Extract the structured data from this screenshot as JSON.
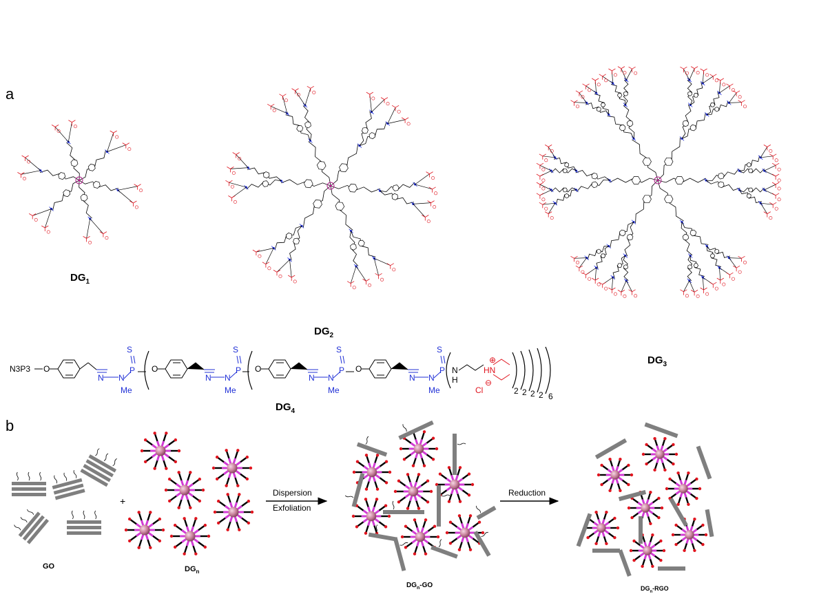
{
  "panels": {
    "a": "a",
    "b": "b"
  },
  "dendrimers": {
    "dg1": {
      "name": "DG",
      "sub": "1"
    },
    "dg2": {
      "name": "DG",
      "sub": "2"
    },
    "dg3": {
      "name": "DG",
      "sub": "3"
    },
    "dg4": {
      "name": "DG",
      "sub": "4"
    }
  },
  "formula": {
    "core": "N3P3",
    "o": "O",
    "s": "S",
    "p": "P",
    "n": "N",
    "me": "Me",
    "h": "H",
    "hn": "HN",
    "nh": "N",
    "cl": "Cl",
    "plus": "⊕",
    "minus": "⊖",
    "sub_2": "2",
    "sub_6": "6"
  },
  "scheme": {
    "go_label": "GO",
    "plus": "+",
    "dgn_label": "DG",
    "dgn_sub": "n",
    "step1_line1": "Dispersion",
    "step1_line2": "Exfoliation",
    "step2": "Reduction",
    "dgn_go_label": "DG",
    "dgn_go_sub": "n",
    "dgn_go_suffix": "-GO",
    "dgn_rgo_label": "DG",
    "dgn_rgo_sub": "n",
    "dgn_rgo_suffix": "-RGO"
  },
  "colors": {
    "branch_black": "#000000",
    "linker_blue": "#1f2fd6",
    "terminal_red": "#e0141e",
    "core_purple": "#b0208c",
    "sheet_gray": "#7f7f7f",
    "dot_red": "#e0141e",
    "ball_pink": "#c9829c"
  }
}
